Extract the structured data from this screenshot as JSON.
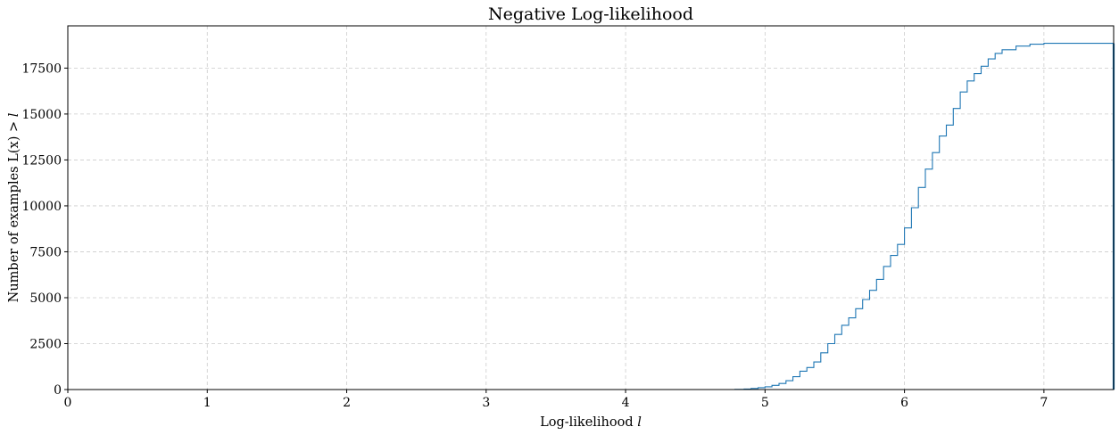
{
  "chart_data": {
    "type": "line",
    "title": "Negative Log-likelihood",
    "xlabel_text": "Log-likelihood ",
    "xlabel_var": "l",
    "ylabel_text": "Number of examples L(x) > ",
    "ylabel_var": "l",
    "xlim": [
      0,
      7.5
    ],
    "ylim": [
      0,
      19800
    ],
    "xticks": [
      0,
      1,
      2,
      3,
      4,
      5,
      6,
      7
    ],
    "yticks": [
      0,
      2500,
      5000,
      7500,
      10000,
      12500,
      15000,
      17500
    ],
    "grid": true,
    "line_color": "#1f77b4",
    "series": [
      {
        "x": [
          4.78,
          4.85,
          4.9,
          4.95,
          5.0,
          5.05,
          5.1,
          5.15,
          5.2,
          5.25,
          5.3,
          5.35,
          5.4,
          5.45,
          5.5,
          5.55,
          5.6,
          5.65,
          5.7,
          5.75,
          5.8,
          5.85,
          5.9,
          5.95,
          6.0,
          6.05,
          6.1,
          6.15,
          6.2,
          6.25,
          6.3,
          6.35,
          6.4,
          6.45,
          6.5,
          6.55,
          6.6,
          6.65,
          6.7,
          6.8,
          6.9,
          7.0,
          7.2,
          7.5
        ],
        "y": [
          10,
          30,
          60,
          100,
          150,
          230,
          330,
          480,
          700,
          1000,
          1200,
          1500,
          2000,
          2500,
          3000,
          3500,
          3900,
          4400,
          4900,
          5400,
          6000,
          6700,
          7300,
          7900,
          8800,
          9900,
          11000,
          12000,
          12900,
          13800,
          14400,
          15300,
          16200,
          16800,
          17200,
          17600,
          18000,
          18300,
          18500,
          18700,
          18800,
          18850,
          18850,
          18850
        ]
      }
    ]
  }
}
